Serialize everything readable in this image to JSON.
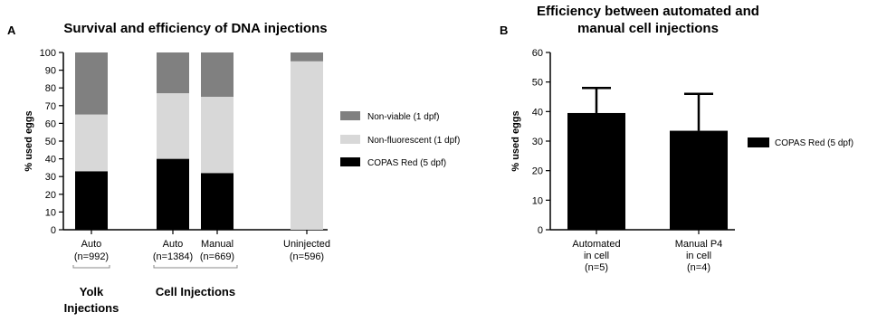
{
  "chart_data": [
    {
      "panel": "A",
      "type": "bar",
      "stacked": true,
      "title": "Survival and efficiency of DNA injections",
      "ylabel": "% used eggs",
      "ylim": [
        0,
        100
      ],
      "yticks": [
        "0",
        "10",
        "20",
        "30",
        "40",
        "50",
        "60",
        "70",
        "80",
        "90",
        "100"
      ],
      "categories": [
        {
          "label": "Auto",
          "n": "(n=992)"
        },
        {
          "label": "Auto",
          "n": "(n=1384)"
        },
        {
          "label": "Manual",
          "n": "(n=669)"
        },
        {
          "label": "Uninjected",
          "n": "(n=596)"
        }
      ],
      "series": [
        {
          "name": "COPAS Red (5 dpf)",
          "color": "#000000",
          "values": [
            33,
            40,
            32,
            0
          ]
        },
        {
          "name": "Non-fluorescent (1 dpf)",
          "color": "#d8d8d8",
          "values": [
            32,
            37,
            43,
            95
          ]
        },
        {
          "name": "Non-viable (1 dpf)",
          "color": "#808080",
          "values": [
            35,
            23,
            25,
            5
          ]
        }
      ],
      "legend_order": [
        "Non-viable (1 dpf)",
        "Non-fluorescent (1 dpf)",
        "COPAS Red (5 dpf)"
      ],
      "legend_placement": "right",
      "groups": [
        {
          "label_lines": [
            "Yolk",
            "Injections"
          ]
        },
        {
          "label_lines": [
            "Cell Injections"
          ]
        }
      ]
    },
    {
      "panel": "B",
      "type": "bar",
      "title_lines": [
        "Efficiency between automated and",
        "manual cell injections"
      ],
      "ylabel": "% used eggs",
      "ylim": [
        0,
        60
      ],
      "yticks": [
        "0",
        "10",
        "20",
        "30",
        "40",
        "50",
        "60"
      ],
      "categories": [
        {
          "lines": [
            "Automated",
            "in cell",
            "(n=5)"
          ]
        },
        {
          "lines": [
            "Manual P4",
            "in cell",
            "(n=4)"
          ]
        }
      ],
      "series": [
        {
          "name": "COPAS Red (5 dpf)",
          "color": "#000000",
          "values": [
            39.5,
            33.5
          ],
          "errors": [
            8.5,
            12.5
          ]
        }
      ],
      "legend_placement": "right"
    }
  ]
}
